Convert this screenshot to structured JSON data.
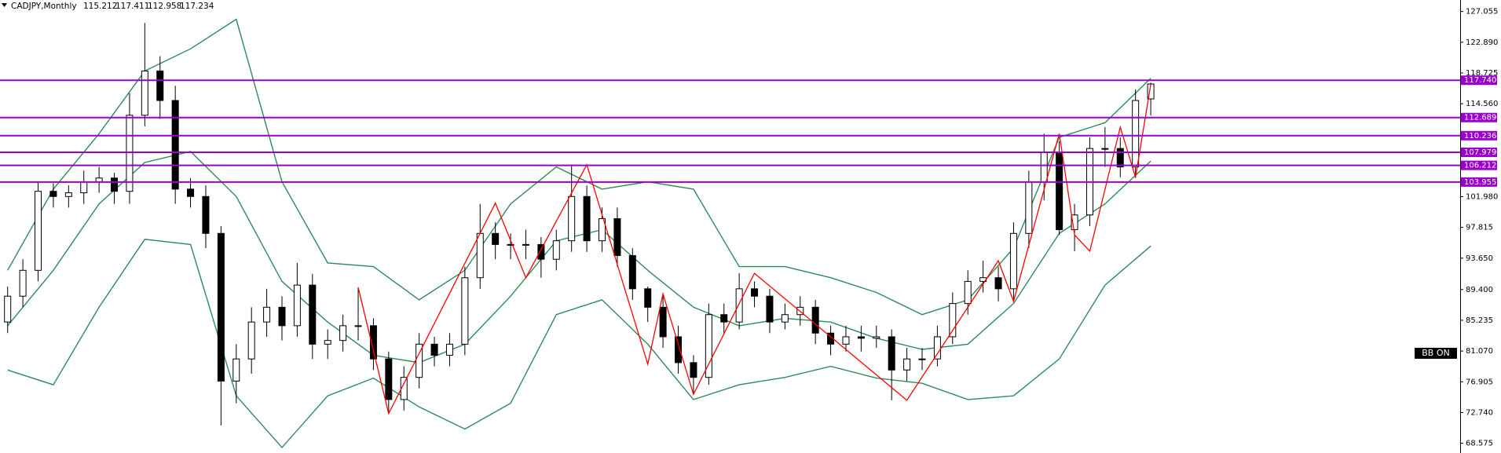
{
  "chart_data": {
    "type": "candlestick",
    "symbol": "CADJPY,Monthly",
    "xlim": [
      -0.5,
      95.3
    ],
    "ylim": [
      67.26,
      128.61
    ],
    "yticks": [
      {
        "value": 127.055,
        "label": "127.055"
      },
      {
        "value": 122.89,
        "label": "122.890"
      },
      {
        "value": 118.725,
        "label": "118.725"
      },
      {
        "value": 114.56,
        "label": "114.560"
      },
      {
        "value": 101.98,
        "label": "101.980"
      },
      {
        "value": 97.815,
        "label": "97.815"
      },
      {
        "value": 93.65,
        "label": "93.650"
      },
      {
        "value": 89.4,
        "label": "89.400"
      },
      {
        "value": 85.235,
        "label": "85.235"
      },
      {
        "value": 81.07,
        "label": "81.070"
      },
      {
        "value": 76.905,
        "label": "76.905"
      },
      {
        "value": 72.74,
        "label": "72.740"
      },
      {
        "value": 68.575,
        "label": "68.575"
      }
    ],
    "up_color": "#ffffff",
    "down_color": "#000000",
    "open": [
      85,
      88.5,
      92,
      102.7,
      102,
      102.5,
      104,
      104.5,
      102.7,
      113,
      119,
      115,
      103,
      102,
      97,
      77,
      80,
      85,
      87,
      84.5,
      90,
      82,
      82.5,
      84.5,
      84.5,
      80,
      74.5,
      77.5,
      82,
      80.5,
      82,
      91,
      97,
      95.5,
      95.5,
      95.5,
      93.5,
      96,
      102,
      96,
      99,
      94,
      89.5,
      87,
      83,
      79.5,
      77.5,
      86,
      85,
      89.5,
      88.5,
      85,
      86,
      87,
      83.5,
      82,
      83,
      82.8,
      83,
      78.5,
      80,
      80,
      83,
      87.5,
      90.5,
      91,
      89.5,
      97,
      104,
      108,
      97.5,
      99.5,
      108.5,
      108.5,
      106,
      115.212
    ],
    "high": [
      89.8,
      93.5,
      104,
      103.8,
      103.5,
      105.5,
      106,
      105.2,
      116,
      125.5,
      121,
      117,
      104.5,
      103.5,
      98,
      82,
      87,
      89.5,
      88.5,
      93,
      91.5,
      84,
      86,
      89.7,
      85.5,
      81,
      79,
      83.5,
      83,
      83.5,
      92.5,
      101,
      98.5,
      97,
      97.5,
      96.5,
      97.5,
      106.3,
      103.5,
      100.5,
      100.5,
      95,
      89.8,
      88.8,
      84.5,
      80.5,
      87.5,
      87.5,
      91.6,
      90.5,
      89.5,
      87.5,
      88.5,
      88,
      84.5,
      84.5,
      84.5,
      84.5,
      84,
      81.5,
      81.5,
      84.5,
      89,
      92,
      93.3,
      92.5,
      98.5,
      105.5,
      110.5,
      109.5,
      101,
      110,
      111.4,
      110,
      116.5,
      117.411
    ],
    "low": [
      83.5,
      87,
      90.5,
      100.5,
      100.5,
      101,
      102.5,
      101,
      101,
      111.5,
      112.5,
      101,
      100.5,
      95,
      71,
      74,
      78,
      83,
      82.5,
      83,
      80,
      80,
      81,
      82.5,
      78.5,
      72.6,
      73,
      76,
      79,
      79,
      80.5,
      89.5,
      93.5,
      93.5,
      93.5,
      91,
      92,
      94.5,
      94.5,
      94.5,
      92.5,
      88,
      85,
      81.5,
      78,
      75.2,
      76.5,
      83.5,
      84,
      87,
      83.5,
      84,
      84.5,
      82,
      80.5,
      81,
      81,
      81.5,
      74.4,
      77,
      78.5,
      79,
      82,
      86,
      89,
      87.8,
      88,
      95,
      101.5,
      96.8,
      94.6,
      98,
      106,
      104.6,
      104.5,
      112.958
    ],
    "close": [
      88.5,
      92,
      102.7,
      102,
      102.5,
      104,
      104.5,
      102.7,
      113,
      119,
      115,
      103,
      102,
      97,
      77,
      80,
      85,
      87,
      84.5,
      90,
      82,
      82.5,
      84.5,
      84.5,
      80,
      74.5,
      77.5,
      82,
      80.5,
      82,
      91,
      97,
      95.5,
      95.5,
      95.5,
      93.5,
      96,
      102,
      96,
      99,
      94,
      89.5,
      87,
      83,
      79.5,
      77.5,
      86,
      85,
      89.5,
      88.5,
      85,
      86,
      87,
      83.5,
      82,
      83,
      82.8,
      83,
      78.5,
      80,
      80,
      83,
      87.5,
      90.5,
      91,
      89.5,
      97,
      104,
      108,
      97.5,
      99.5,
      108.5,
      108.5,
      106,
      115,
      117.234
    ],
    "bands": {
      "x": [
        0,
        3,
        6,
        9,
        12,
        15,
        18,
        21,
        24,
        27,
        30,
        33,
        36,
        39,
        42,
        45,
        48,
        51,
        54,
        57,
        60,
        63,
        66,
        69,
        72,
        75
      ],
      "series": [
        {
          "color": "#2e8b57",
          "values": [
            92,
            103,
            110.5,
            119,
            122,
            126,
            104,
            93,
            92.5,
            88,
            92,
            101,
            106,
            103,
            104,
            103,
            92.5,
            92.5,
            91,
            89,
            86,
            88,
            95,
            110,
            112,
            118
          ]
        },
        {
          "color": "#2e8b57",
          "values": [
            84.5,
            92,
            101,
            106.6,
            108.1,
            102,
            90.5,
            85,
            80.5,
            79.5,
            82,
            88.5,
            96,
            97.5,
            92,
            87,
            84.5,
            85.5,
            85,
            82.8,
            81.3,
            82,
            87.5,
            97,
            101,
            106.8
          ]
        },
        {
          "color": "#2e8b57",
          "values": [
            78.5,
            76.5,
            87,
            96.2,
            95.5,
            75,
            68,
            75,
            77.4,
            73.5,
            70.5,
            74,
            86,
            88,
            82,
            74.5,
            76.5,
            77.5,
            79,
            77.4,
            76.7,
            74.5,
            75,
            80,
            90,
            95.3
          ]
        }
      ]
    },
    "zigzag": {
      "color": "#ff0000",
      "x": [
        23,
        25,
        32,
        34,
        38,
        42,
        43,
        45,
        49,
        59,
        65,
        66,
        69,
        70,
        71,
        73,
        74,
        75
      ],
      "values": [
        89.7,
        72.6,
        101.1,
        91,
        106.3,
        79.3,
        88.8,
        75.2,
        91.6,
        74.4,
        93.3,
        87.8,
        110.5,
        96.8,
        94.6,
        111.4,
        104.6,
        117.2
      ]
    },
    "hlines": {
      "color": "#9900cc",
      "levels": [
        {
          "value": 117.74,
          "label": "117.740"
        },
        {
          "value": 112.689,
          "label": "112.689"
        },
        {
          "value": 110.236,
          "label": "110.236"
        },
        {
          "value": 107.979,
          "label": "107.979"
        },
        {
          "value": 106.212,
          "label": "106.212"
        },
        {
          "value": 103.955,
          "label": "103.955"
        }
      ]
    },
    "badge": "BB ON"
  }
}
